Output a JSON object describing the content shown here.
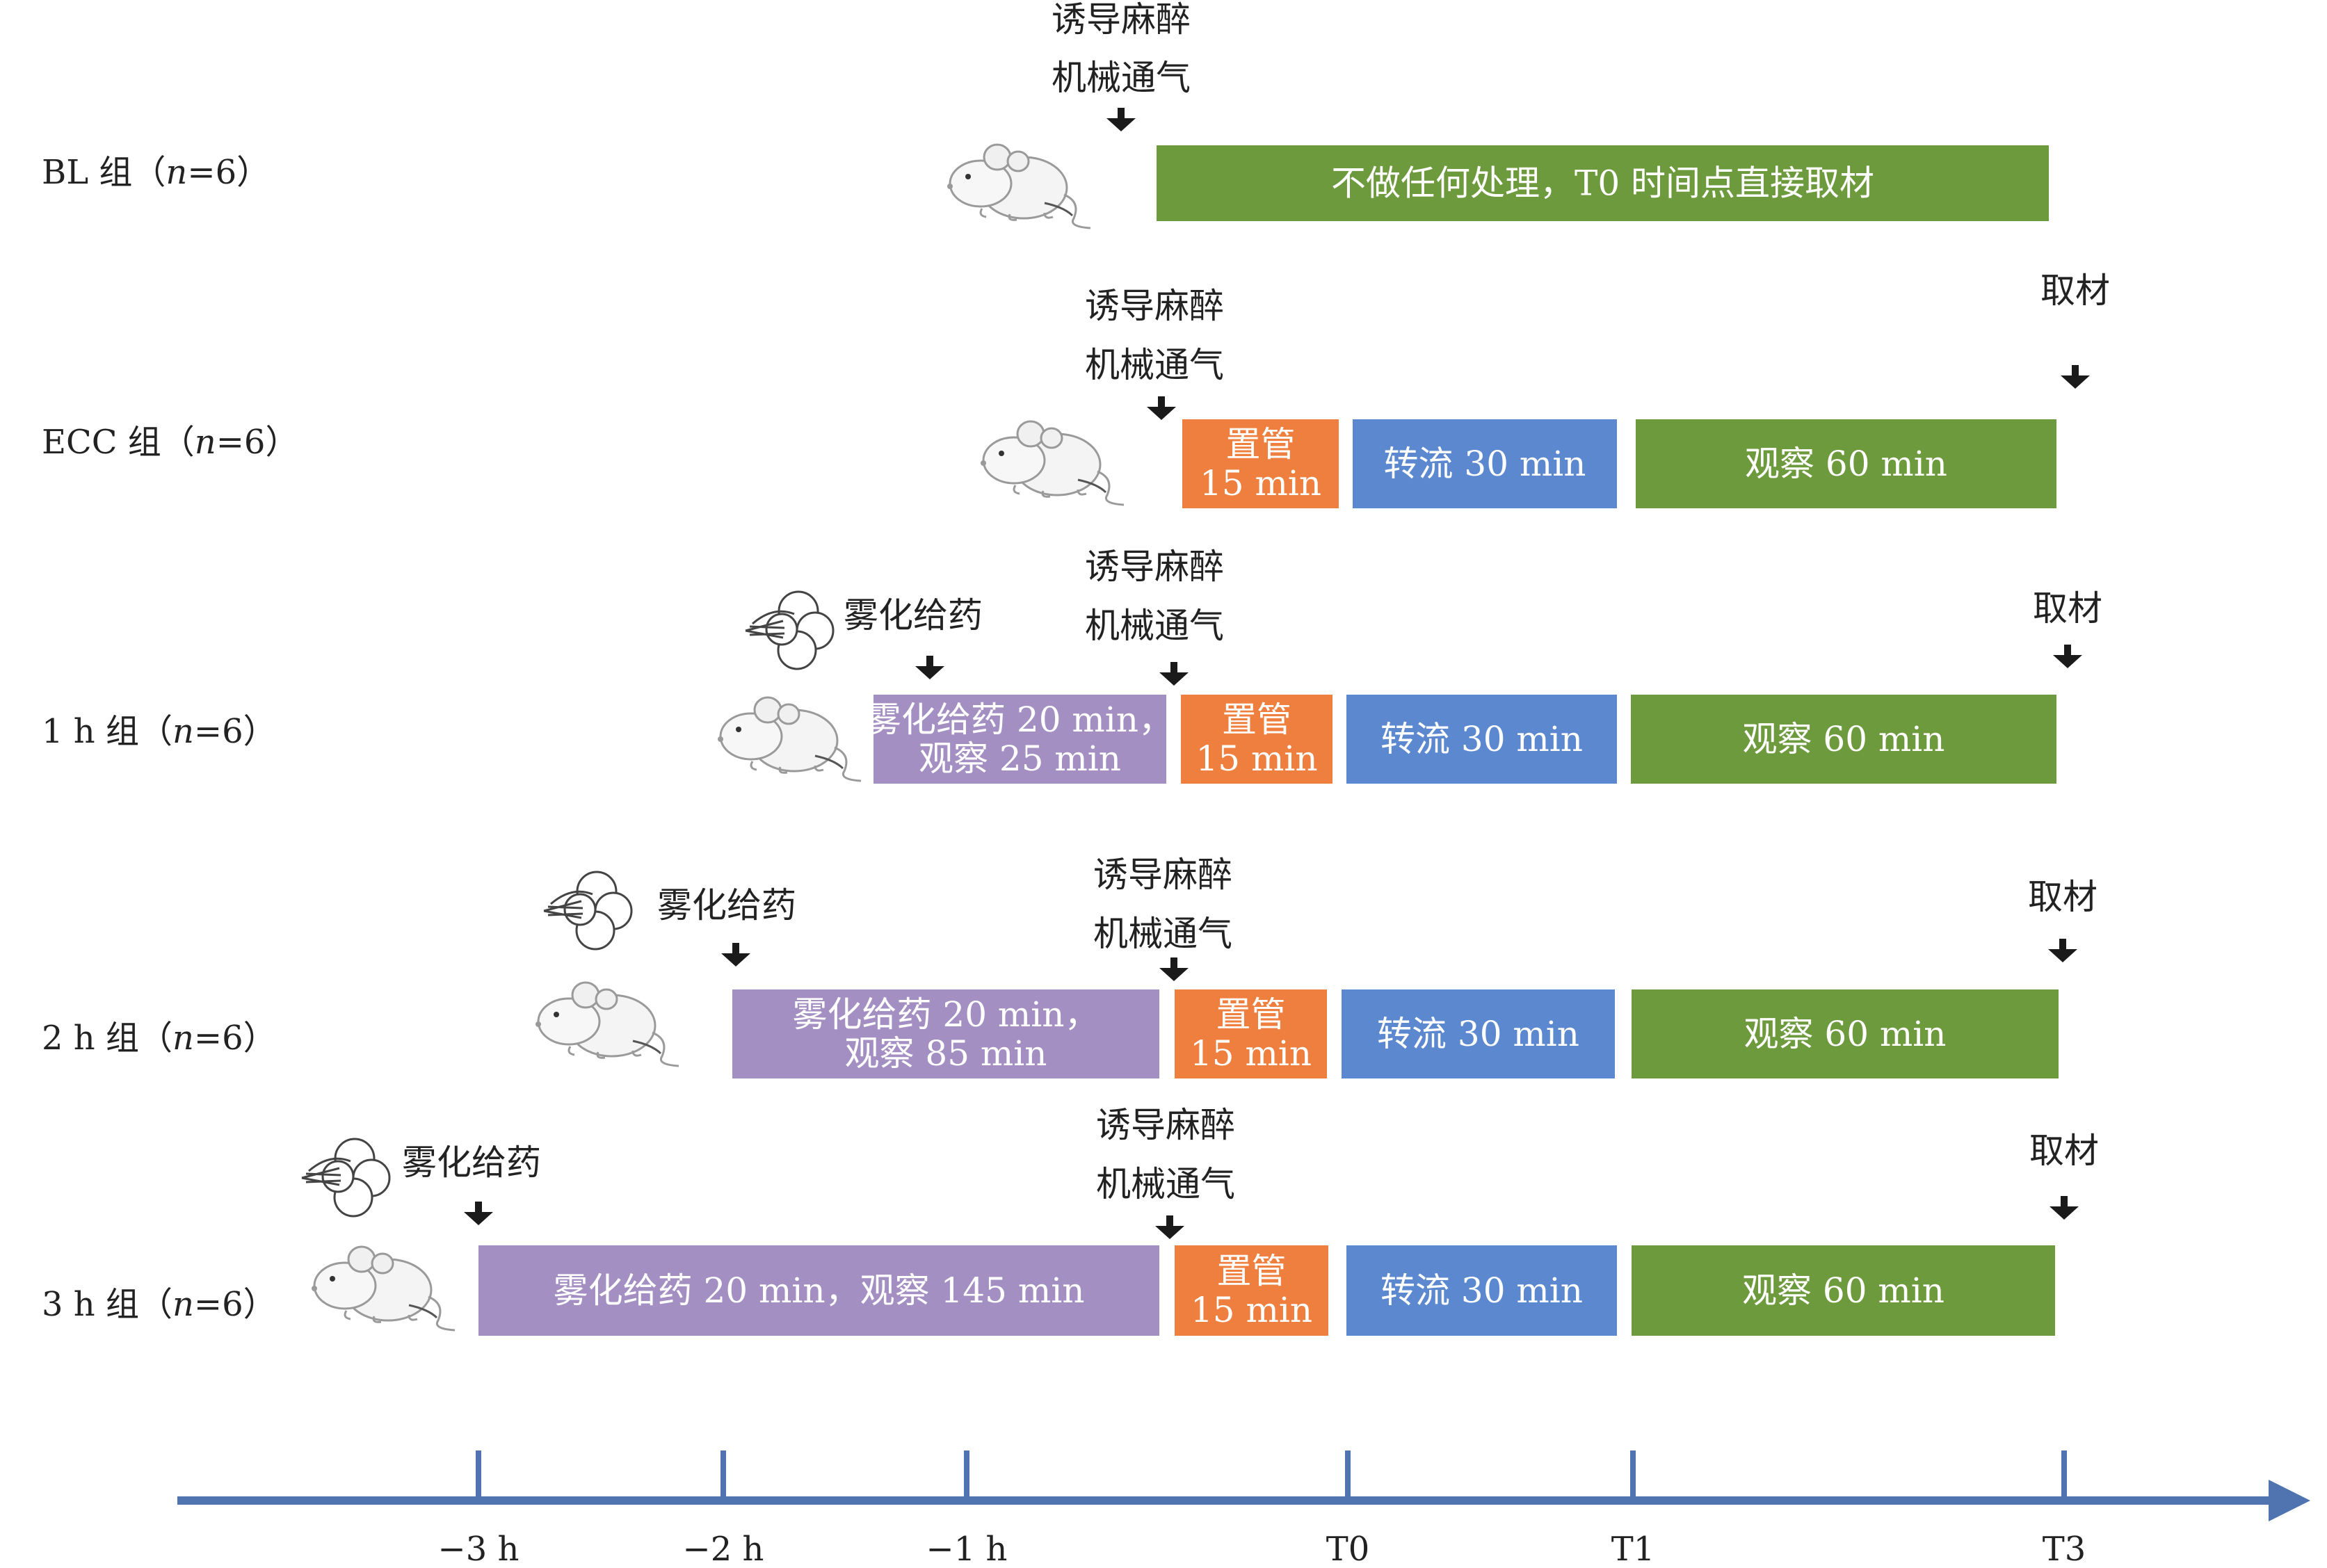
{
  "colors": {
    "green": "#6E9A3E",
    "orange": "#EE7F3E",
    "blue": "#5B88CF",
    "purple": "#A48FC2",
    "axis": "#4F74B0",
    "arrow": "#1a1a1a",
    "label_text": "#222222",
    "box_text": "#ffffff"
  },
  "annotations": {
    "induce": "诱导麻醉",
    "ventilate": "机械通气",
    "sample": "取材",
    "nebulize": "雾化给药"
  },
  "rows": [
    {
      "label": {
        "prefix": "BL 组（",
        "n": "n",
        "suffix": "=6）"
      },
      "boxes": [
        {
          "color": "green",
          "lines": [
            "不做任何处理，T0 时间点直接取材"
          ]
        }
      ]
    },
    {
      "label": {
        "prefix": "ECC 组（",
        "n": "n",
        "suffix": "=6）"
      },
      "boxes": [
        {
          "color": "orange",
          "lines": [
            "置管",
            "15 min"
          ]
        },
        {
          "color": "blue",
          "lines": [
            "转流 30 min"
          ]
        },
        {
          "color": "green",
          "lines": [
            "观察 60 min"
          ]
        }
      ]
    },
    {
      "label": {
        "prefix": "1 h 组（",
        "n": "n",
        "suffix": "=6）"
      },
      "boxes": [
        {
          "color": "purple",
          "lines": [
            "雾化给药 20 min，",
            "观察 25 min"
          ]
        },
        {
          "color": "orange",
          "lines": [
            "置管",
            "15 min"
          ]
        },
        {
          "color": "blue",
          "lines": [
            "转流 30 min"
          ]
        },
        {
          "color": "green",
          "lines": [
            "观察 60 min"
          ]
        }
      ]
    },
    {
      "label": {
        "prefix": "2 h 组（",
        "n": "n",
        "suffix": "=6）"
      },
      "boxes": [
        {
          "color": "purple",
          "lines": [
            "雾化给药 20 min，",
            "观察 85 min"
          ]
        },
        {
          "color": "orange",
          "lines": [
            "置管",
            "15 min"
          ]
        },
        {
          "color": "blue",
          "lines": [
            "转流 30 min"
          ]
        },
        {
          "color": "green",
          "lines": [
            "观察 60 min"
          ]
        }
      ]
    },
    {
      "label": {
        "prefix": "3 h 组（",
        "n": "n",
        "suffix": "=6）"
      },
      "boxes": [
        {
          "color": "purple",
          "lines": [
            "雾化给药 20 min，观察 145 min"
          ]
        },
        {
          "color": "orange",
          "lines": [
            "置管",
            "15 min"
          ]
        },
        {
          "color": "blue",
          "lines": [
            "转流 30 min"
          ]
        },
        {
          "color": "green",
          "lines": [
            "观察 60 min"
          ]
        }
      ]
    }
  ],
  "axis": {
    "ticks": [
      "−3 h",
      "−2 h",
      "−1 h",
      "T0",
      "T1",
      "T3"
    ]
  }
}
